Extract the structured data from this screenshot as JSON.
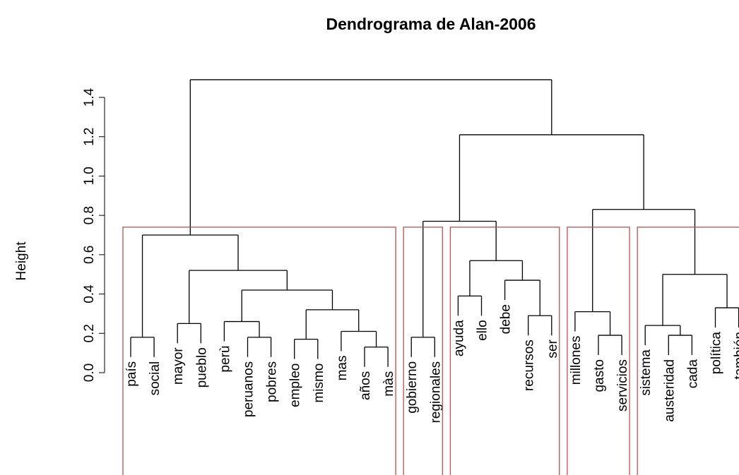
{
  "chart_data": {
    "type": "dendrogram",
    "title": "Dendrograma de Alan-2006",
    "y_label": "Height",
    "leaves": [
      "país",
      "social",
      "mayor",
      "pueblo",
      "perù",
      "peruanos",
      "pobres",
      "empleo",
      "mismo",
      "mas",
      "años",
      "màs",
      "gobierno",
      "regionales",
      "ayuda",
      "ello",
      "debe",
      "recursos",
      "ser",
      "millones",
      "gasto",
      "servicios",
      "sistema",
      "austeridad",
      "cada",
      "política",
      "también"
    ],
    "merges": [
      [
        -1,
        -2,
        0.18
      ],
      [
        -3,
        -4,
        0.25
      ],
      [
        -6,
        -7,
        0.18
      ],
      [
        -5,
        3,
        0.26
      ],
      [
        -8,
        -9,
        0.17
      ],
      [
        -11,
        -12,
        0.13
      ],
      [
        -10,
        6,
        0.21
      ],
      [
        5,
        7,
        0.32
      ],
      [
        4,
        8,
        0.42
      ],
      [
        2,
        9,
        0.52
      ],
      [
        1,
        10,
        0.7
      ],
      [
        -13,
        -14,
        0.18
      ],
      [
        -18,
        -19,
        0.29
      ],
      [
        -17,
        13,
        0.47
      ],
      [
        -15,
        -16,
        0.39
      ],
      [
        15,
        14,
        0.57
      ],
      [
        12,
        16,
        0.77
      ],
      [
        -21,
        -22,
        0.19
      ],
      [
        -20,
        18,
        0.31
      ],
      [
        -24,
        -25,
        0.19
      ],
      [
        -23,
        20,
        0.24
      ],
      [
        -26,
        -27,
        0.33
      ],
      [
        21,
        22,
        0.5
      ],
      [
        19,
        23,
        0.83
      ],
      [
        17,
        24,
        1.21
      ],
      [
        11,
        25,
        1.49
      ]
    ],
    "cut_height": 0.74,
    "clusters": [
      [
        0,
        11
      ],
      [
        12,
        13
      ],
      [
        14,
        18
      ],
      [
        19,
        21
      ],
      [
        22,
        26
      ]
    ],
    "cluster_color": "#c0504d",
    "line_color": "#000000",
    "ylim": [
      0,
      1.4
    ],
    "yticks": [
      {
        "value": 0,
        "label": "0.0"
      },
      0.2,
      0.4,
      0.6,
      0.8,
      {
        "value": 1,
        "label": "1.0"
      },
      1.2,
      1.4
    ]
  }
}
